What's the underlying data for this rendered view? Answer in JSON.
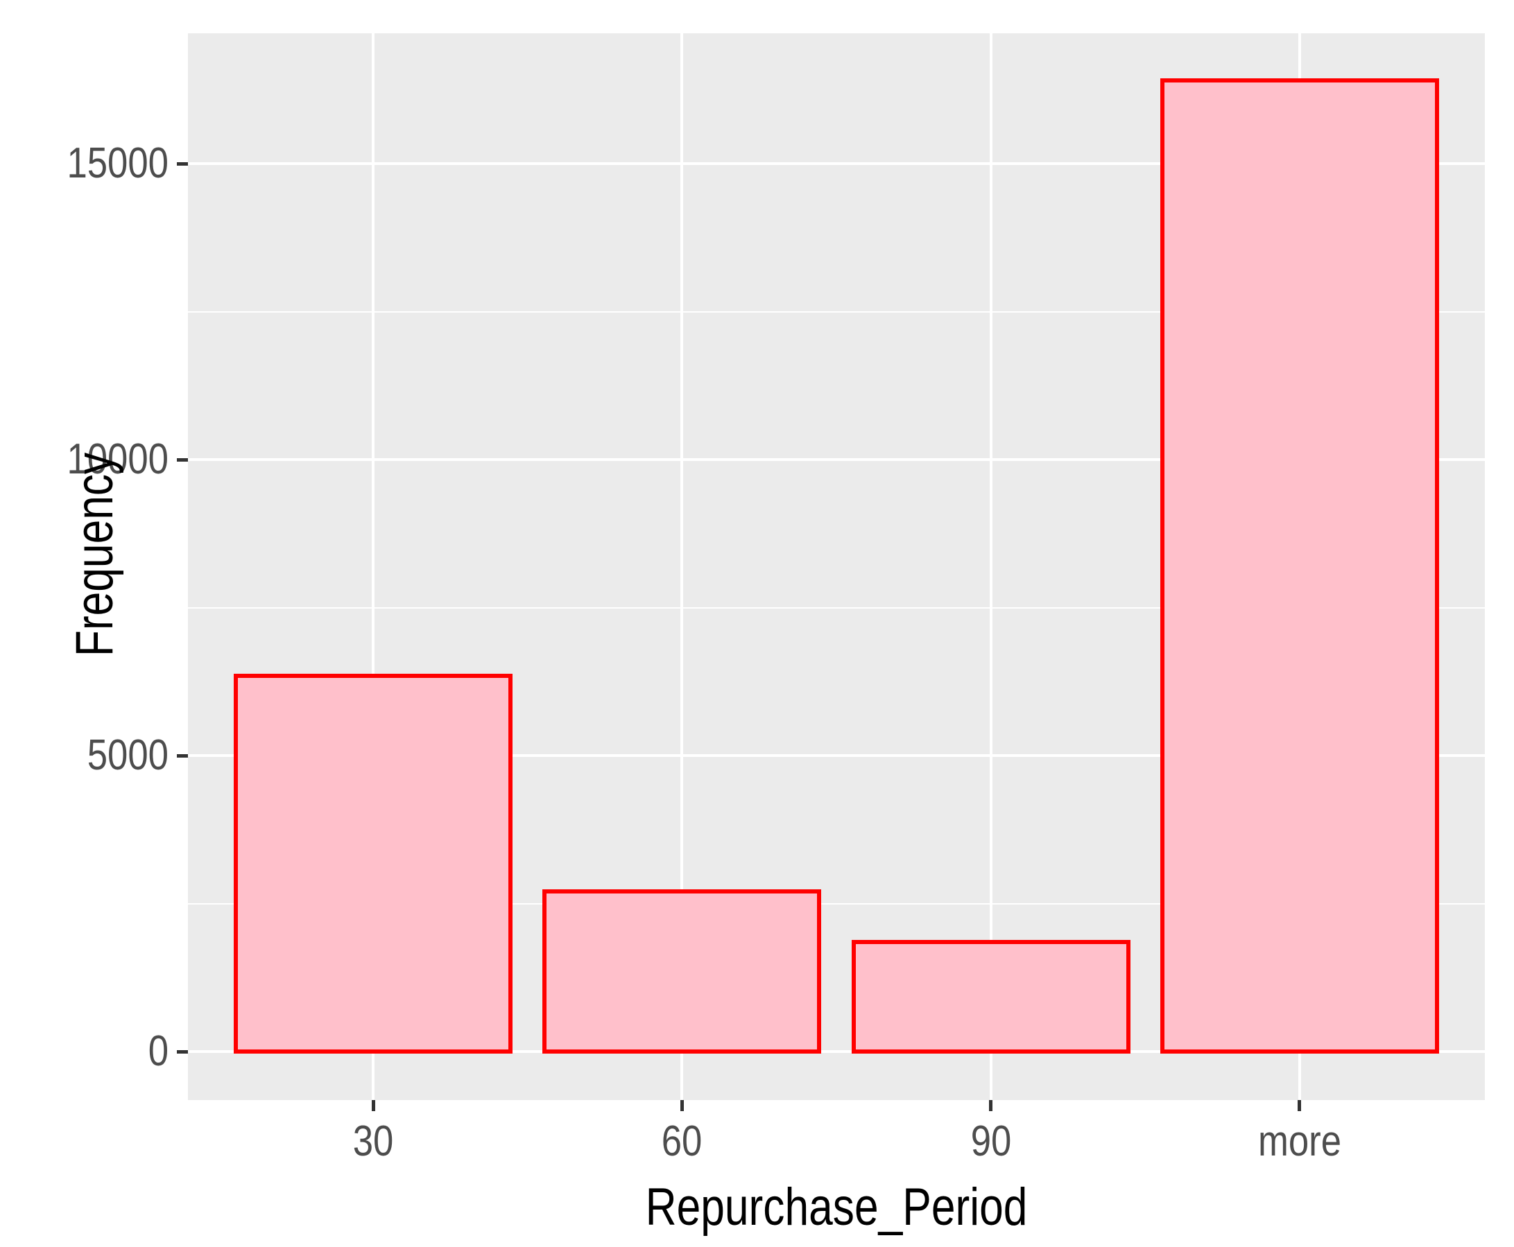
{
  "chart_data": {
    "type": "bar",
    "title": "",
    "xlabel": "Repurchase_Period",
    "ylabel": "Frequency",
    "categories": [
      "30",
      "60",
      "90",
      "more"
    ],
    "values": [
      6350,
      2700,
      1850,
      16400
    ],
    "y_ticks": [
      0,
      5000,
      10000,
      15000
    ],
    "y_tick_labels": [
      "0",
      "5000",
      "10000",
      "15000"
    ],
    "y_minor_gridlines": [
      2500,
      7500,
      12500
    ],
    "ylim": [
      -820,
      17210
    ],
    "grid": "major-and-minor-horizontal, major-vertical-at-categories",
    "legend": false,
    "style": {
      "bar_fill": "#FFC0CB",
      "bar_border": "#FF0000",
      "panel_background": "#EBEBEB",
      "gridline_color": "#FFFFFF",
      "tick_label_color": "#4D4D4D",
      "axis_title_color": "#000000",
      "tick_mark_color": "#333333"
    }
  }
}
